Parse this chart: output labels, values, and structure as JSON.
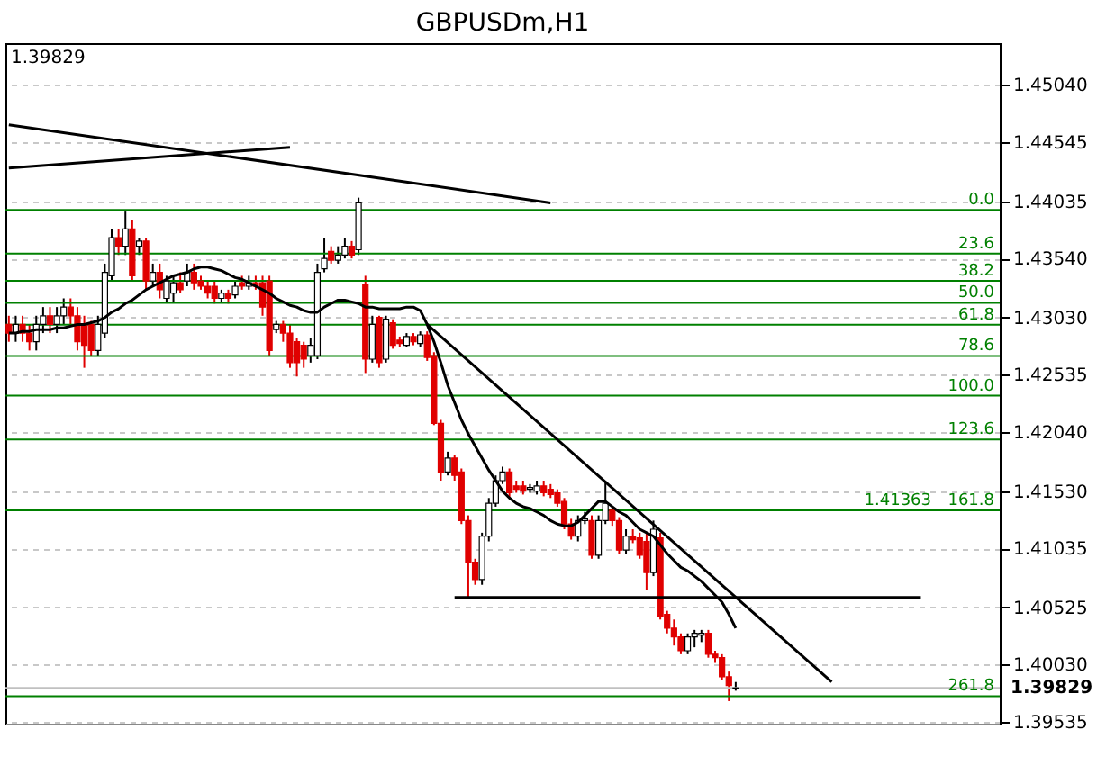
{
  "chart_data": {
    "type": "candlestick",
    "title": "GBPUSDm,H1",
    "categories": [
      null,
      null,
      null,
      null,
      null,
      null,
      null,
      null,
      null,
      null,
      null,
      null,
      null,
      null,
      null,
      null,
      null,
      null,
      null,
      null,
      null,
      null,
      null,
      null,
      null,
      null,
      null,
      null,
      null,
      null,
      null,
      null,
      null,
      null,
      null,
      null,
      null,
      null,
      null,
      null,
      null,
      null,
      null,
      null,
      null,
      null,
      null,
      null,
      null,
      null,
      null,
      null,
      null,
      null,
      null,
      null,
      null,
      null,
      null,
      null,
      null,
      null,
      null,
      null,
      null,
      null,
      null,
      null,
      null,
      null,
      null,
      null,
      null,
      null,
      null,
      null,
      null,
      null,
      null,
      null,
      null,
      null,
      null,
      null,
      null,
      null,
      null,
      null,
      null,
      null,
      null,
      null,
      null,
      null,
      null,
      null,
      null,
      null,
      null,
      null,
      null,
      null,
      null,
      null,
      null,
      null,
      null,
      null,
      null,
      null,
      null,
      null,
      null,
      null,
      null,
      null,
      null,
      null,
      null,
      null,
      null,
      null,
      null,
      null,
      null,
      null,
      null,
      null,
      null,
      null,
      null,
      null,
      null,
      null,
      null,
      null,
      null,
      null,
      null,
      null,
      null,
      null,
      null,
      null,
      null
    ],
    "ohlc": [
      [
        1.4297,
        1.43045,
        1.4282,
        1.42895
      ],
      [
        1.42895,
        1.43045,
        1.4282,
        1.4297
      ],
      [
        1.4297,
        1.43045,
        1.4282,
        1.42895
      ],
      [
        1.42895,
        1.4297,
        1.42745,
        1.4282
      ],
      [
        1.4282,
        1.43045,
        1.42745,
        1.4297
      ],
      [
        1.4297,
        1.4312,
        1.42895,
        1.43045
      ],
      [
        1.43045,
        1.4312,
        1.42895,
        1.4297
      ],
      [
        1.4297,
        1.4312,
        1.42895,
        1.43045
      ],
      [
        1.43045,
        1.43195,
        1.4297,
        1.4312
      ],
      [
        1.4312,
        1.43195,
        1.4297,
        1.43045
      ],
      [
        1.43045,
        1.4312,
        1.42745,
        1.4282
      ],
      [
        1.4297,
        1.43045,
        1.42595,
        1.4279
      ],
      [
        1.4297,
        1.43,
        1.427,
        1.42745
      ],
      [
        1.42745,
        1.43045,
        1.427,
        1.4297
      ],
      [
        1.42895,
        1.43495,
        1.4285,
        1.4342
      ],
      [
        1.4339,
        1.43795,
        1.43345,
        1.4372
      ],
      [
        1.4372,
        1.43795,
        1.4357,
        1.43645
      ],
      [
        1.43645,
        1.43945,
        1.4357,
        1.43795
      ],
      [
        1.43795,
        1.4387,
        1.43345,
        1.4339
      ],
      [
        1.43645,
        1.4372,
        1.4357,
        1.4369
      ],
      [
        1.4369,
        1.4372,
        1.4327,
        1.43345
      ],
      [
        1.43345,
        1.43495,
        1.433,
        1.4342
      ],
      [
        1.4342,
        1.43495,
        1.43195,
        1.4327
      ],
      [
        1.43195,
        1.4339,
        1.43165,
        1.43345
      ],
      [
        1.4324,
        1.4339,
        1.43165,
        1.4333
      ],
      [
        1.4333,
        1.4342,
        1.4324,
        1.4327
      ],
      [
        1.43345,
        1.43495,
        1.433,
        1.4342
      ],
      [
        1.4342,
        1.43495,
        1.4327,
        1.4333
      ],
      [
        1.43345,
        1.4339,
        1.4327,
        1.433
      ],
      [
        1.433,
        1.43345,
        1.43195,
        1.4324
      ],
      [
        1.433,
        1.43345,
        1.4315,
        1.43195
      ],
      [
        1.43195,
        1.4327,
        1.43165,
        1.4324
      ],
      [
        1.4324,
        1.4327,
        1.4315,
        1.43195
      ],
      [
        1.43225,
        1.43345,
        1.43195,
        1.433
      ],
      [
        1.4333,
        1.4339,
        1.4327,
        1.433
      ],
      [
        1.433,
        1.4339,
        1.4327,
        1.4333
      ],
      [
        1.4333,
        1.4339,
        1.4327,
        1.433
      ],
      [
        1.4333,
        1.4339,
        1.43045,
        1.4312
      ],
      [
        1.43345,
        1.4339,
        1.427,
        1.42745
      ],
      [
        1.42925,
        1.43,
        1.42895,
        1.4297
      ],
      [
        1.4297,
        1.43,
        1.4282,
        1.42895
      ],
      [
        1.42895,
        1.4297,
        1.42595,
        1.4264
      ],
      [
        1.4282,
        1.4285,
        1.4252,
        1.4264
      ],
      [
        1.4279,
        1.4282,
        1.42595,
        1.4267
      ],
      [
        1.427,
        1.4285,
        1.4264,
        1.4279
      ],
      [
        1.427,
        1.43495,
        1.4267,
        1.4342
      ],
      [
        1.4345,
        1.4372,
        1.4342,
        1.4354
      ],
      [
        1.436,
        1.43645,
        1.43495,
        1.43525
      ],
      [
        1.43525,
        1.43645,
        1.43495,
        1.4357
      ],
      [
        1.4357,
        1.4372,
        1.4354,
        1.43645
      ],
      [
        1.43645,
        1.4369,
        1.4354,
        1.4357
      ],
      [
        1.43615,
        1.44065,
        1.4357,
        1.4402
      ],
      [
        1.43315,
        1.4339,
        1.4255,
        1.4267
      ],
      [
        1.4267,
        1.43045,
        1.4264,
        1.4297
      ],
      [
        1.4303,
        1.43045,
        1.42595,
        1.4264
      ],
      [
        1.4267,
        1.43045,
        1.4264,
        1.43015
      ],
      [
        1.42985,
        1.43015,
        1.4276,
        1.4279
      ],
      [
        1.42835,
        1.42865,
        1.42775,
        1.42805
      ],
      [
        1.4279,
        1.42895,
        1.42775,
        1.42865
      ],
      [
        1.42865,
        1.42895,
        1.4279,
        1.4282
      ],
      [
        1.42805,
        1.4291,
        1.42775,
        1.4288
      ],
      [
        1.4288,
        1.4291,
        1.42655,
        1.42685
      ],
      [
        1.427,
        1.4273,
        1.421,
        1.42115
      ],
      [
        1.42115,
        1.42145,
        1.4162,
        1.41695
      ],
      [
        1.41695,
        1.4187,
        1.41665,
        1.41815
      ],
      [
        1.41815,
        1.41845,
        1.4162,
        1.41665
      ],
      [
        1.41695,
        1.41725,
        1.41245,
        1.41275
      ],
      [
        1.41275,
        1.4132,
        1.40615,
        1.40915
      ],
      [
        1.40915,
        1.40945,
        1.4072,
        1.40765
      ],
      [
        1.40765,
        1.4117,
        1.4072,
        1.4114
      ],
      [
        1.4114,
        1.4147,
        1.41095,
        1.41425
      ],
      [
        1.41425,
        1.41665,
        1.41395,
        1.4162
      ],
      [
        1.4162,
        1.4174,
        1.4159,
        1.41695
      ],
      [
        1.41695,
        1.41725,
        1.4147,
        1.41515
      ],
      [
        1.41575,
        1.4162,
        1.41515,
        1.41545
      ],
      [
        1.41575,
        1.4162,
        1.415,
        1.4153
      ],
      [
        1.41545,
        1.4159,
        1.41515,
        1.4156
      ],
      [
        1.4153,
        1.4162,
        1.415,
        1.41575
      ],
      [
        1.41575,
        1.4162,
        1.41485,
        1.41515
      ],
      [
        1.41545,
        1.4159,
        1.4147,
        1.415
      ],
      [
        1.41515,
        1.41545,
        1.41395,
        1.41425
      ],
      [
        1.4144,
        1.4147,
        1.412,
        1.41245
      ],
      [
        1.41245,
        1.4129,
        1.4111,
        1.4114
      ],
      [
        1.4114,
        1.4132,
        1.41095,
        1.41275
      ],
      [
        1.41275,
        1.4135,
        1.41245,
        1.4129
      ],
      [
        1.41275,
        1.4132,
        1.40945,
        1.40975
      ],
      [
        1.40975,
        1.4132,
        1.40945,
        1.41275
      ],
      [
        1.41275,
        1.4162,
        1.41245,
        1.41425
      ],
      [
        1.41365,
        1.41395,
        1.4123,
        1.41275
      ],
      [
        1.41275,
        1.41305,
        1.4099,
        1.4102
      ],
      [
        1.4102,
        1.412,
        1.4099,
        1.4114
      ],
      [
        1.4114,
        1.412,
        1.4108,
        1.4111
      ],
      [
        1.41125,
        1.4117,
        1.40945,
        1.40975
      ],
      [
        1.41095,
        1.4117,
        1.40675,
        1.40825
      ],
      [
        1.40825,
        1.41275,
        1.40795,
        1.412
      ],
      [
        1.41125,
        1.4117,
        1.4042,
        1.4045
      ],
      [
        1.40465,
        1.40495,
        1.403,
        1.40345
      ],
      [
        1.40345,
        1.4042,
        1.40195,
        1.4027
      ],
      [
        1.4027,
        1.403,
        1.4012,
        1.4015
      ],
      [
        1.4015,
        1.403,
        1.4012,
        1.4027
      ],
      [
        1.4027,
        1.4033,
        1.4018,
        1.403
      ],
      [
        1.40285,
        1.4033,
        1.40225,
        1.403
      ],
      [
        1.403,
        1.4033,
        1.4009,
        1.4012
      ],
      [
        1.4012,
        1.4015,
        1.40045,
        1.4009
      ],
      [
        1.4009,
        1.4012,
        1.39895,
        1.39925
      ],
      [
        1.39925,
        1.3997,
        1.39715,
        1.3985
      ],
      [
        1.3982,
        1.3988,
        1.39805,
        1.39829
      ],
      null,
      null,
      null,
      null,
      null,
      null,
      null,
      null,
      null,
      null,
      null,
      null,
      null,
      null,
      null,
      null,
      null,
      null,
      null,
      null,
      null,
      null,
      null,
      null,
      null,
      null,
      null,
      null,
      null,
      null,
      null,
      null,
      null,
      null,
      null,
      null,
      null,
      null
    ],
    "series": [
      {
        "type": "line",
        "color": "#000000",
        "values": [
          1.42895,
          1.42895,
          1.4291,
          1.4291,
          1.42925,
          1.42925,
          1.42925,
          1.4294,
          1.4294,
          1.42955,
          1.4297,
          1.4297,
          1.42985,
          1.43,
          1.4303,
          1.43075,
          1.43105,
          1.4315,
          1.4318,
          1.43225,
          1.4327,
          1.433,
          1.4333,
          1.4336,
          1.4339,
          1.43405,
          1.4342,
          1.4345,
          1.43465,
          1.43465,
          1.4345,
          1.43435,
          1.43405,
          1.43375,
          1.4336,
          1.4333,
          1.433,
          1.4327,
          1.4324,
          1.43195,
          1.43165,
          1.43135,
          1.4312,
          1.4309,
          1.43075,
          1.43075,
          1.4312,
          1.4315,
          1.4318,
          1.4318,
          1.43165,
          1.4315,
          1.4312,
          1.4312,
          1.43105,
          1.43105,
          1.43105,
          1.43105,
          1.4312,
          1.4312,
          1.4309,
          1.4297,
          1.4282,
          1.4264,
          1.42445,
          1.42295,
          1.42145,
          1.42025,
          1.4192,
          1.41815,
          1.4171,
          1.4162,
          1.4153,
          1.4147,
          1.41425,
          1.41395,
          1.4138,
          1.4135,
          1.4132,
          1.41275,
          1.41245,
          1.4123,
          1.4123,
          1.4126,
          1.4132,
          1.4138,
          1.4144,
          1.4144,
          1.41395,
          1.4135,
          1.4132,
          1.4126,
          1.412,
          1.4117,
          1.4114,
          1.41065,
          1.4099,
          1.4093,
          1.4087,
          1.4084,
          1.40795,
          1.4075,
          1.4069,
          1.4063,
          1.4057,
          1.40465,
          1.40345,
          null,
          null,
          null,
          null,
          null,
          null,
          null,
          null,
          null,
          null,
          null,
          null,
          null,
          null,
          null,
          null,
          null,
          null,
          null,
          null,
          null,
          null,
          null,
          null,
          null,
          null,
          null,
          null,
          null,
          null,
          null,
          null,
          null,
          null,
          null,
          null,
          null,
          null
        ]
      },
      {
        "type": "line",
        "color": "#000000",
        "values": [
          null,
          null,
          null,
          null,
          null,
          null,
          null,
          null,
          null,
          null,
          null,
          null,
          null,
          null,
          null,
          null,
          null,
          null,
          null,
          null,
          null,
          null,
          null,
          null,
          null,
          null,
          null,
          null,
          null,
          null,
          null,
          null,
          null,
          null,
          null,
          null,
          null,
          null,
          null,
          null,
          null,
          null,
          null,
          null,
          null,
          null,
          null,
          null,
          null,
          null,
          null,
          null,
          null,
          null,
          null,
          null,
          null,
          null,
          null,
          null,
          null,
          null,
          null,
          null,
          null,
          1.4061,
          null,
          null,
          null,
          null,
          null,
          null,
          null,
          null,
          null,
          null,
          null,
          null,
          null,
          null,
          null,
          null,
          null,
          null,
          null,
          null,
          null,
          null,
          null,
          null,
          null,
          null,
          null,
          null,
          null,
          null,
          null,
          null,
          null,
          null,
          null,
          null,
          null,
          null,
          null,
          null,
          null,
          null,
          null,
          null,
          null,
          null,
          null,
          null,
          null,
          null,
          null,
          null,
          null,
          null,
          null,
          null,
          null,
          null,
          null,
          null,
          null,
          null,
          null,
          null,
          null,
          null,
          null,
          1.4061,
          null,
          null,
          null,
          null,
          null,
          null,
          null,
          null,
          null,
          null,
          null
        ]
      },
      {
        "type": "line",
        "color": "#000000",
        "values": [
          null,
          null,
          null,
          null,
          null,
          null,
          null,
          null,
          null,
          null,
          null,
          null,
          null,
          null,
          null,
          null,
          null,
          null,
          null,
          null,
          null,
          null,
          null,
          null,
          null,
          null,
          null,
          null,
          null,
          null,
          null,
          null,
          null,
          null,
          null,
          null,
          null,
          null,
          null,
          null,
          null,
          null,
          null,
          null,
          null,
          null,
          null,
          null,
          null,
          null,
          null,
          null,
          null,
          null,
          null,
          null,
          null,
          null,
          null,
          null,
          null,
          1.4297,
          null,
          null,
          null,
          null,
          null,
          null,
          null,
          null,
          null,
          null,
          null,
          null,
          null,
          null,
          null,
          null,
          null,
          null,
          null,
          null,
          null,
          null,
          null,
          null,
          null,
          null,
          null,
          null,
          null,
          null,
          null,
          null,
          null,
          null,
          null,
          null,
          null,
          null,
          null,
          null,
          null,
          null,
          null,
          null,
          null,
          null,
          null,
          null,
          null,
          null,
          null,
          null,
          null,
          null,
          null,
          null,
          null,
          null,
          1.3988,
          null,
          null,
          null,
          null,
          null,
          null,
          null,
          null,
          null,
          null,
          null,
          null,
          null,
          null,
          null,
          null,
          null,
          null,
          null,
          null,
          null,
          null,
          null,
          null
        ]
      },
      {
        "type": "line",
        "color": "#000000",
        "values": [
          1.44695,
          null,
          null,
          null,
          null,
          null,
          null,
          null,
          null,
          null,
          null,
          null,
          null,
          null,
          null,
          null,
          null,
          null,
          null,
          null,
          null,
          null,
          null,
          null,
          null,
          null,
          null,
          null,
          null,
          null,
          null,
          null,
          null,
          null,
          null,
          null,
          null,
          null,
          null,
          null,
          null,
          null,
          null,
          null,
          null,
          null,
          null,
          null,
          null,
          null,
          null,
          null,
          null,
          null,
          null,
          null,
          null,
          null,
          null,
          null,
          null,
          null,
          null,
          null,
          null,
          null,
          null,
          null,
          null,
          null,
          null,
          null,
          null,
          null,
          null,
          null,
          null,
          null,
          null,
          1.4402,
          null,
          null,
          null,
          null,
          null,
          null,
          null,
          null,
          null,
          null,
          null,
          null,
          null,
          null,
          null,
          null,
          null,
          null,
          null,
          null,
          null,
          null,
          null,
          null,
          null,
          null,
          null,
          null,
          null,
          null,
          null,
          null,
          null,
          null,
          null,
          null,
          null,
          null,
          null,
          null,
          null,
          null,
          null,
          null,
          null,
          null,
          null,
          null,
          null,
          null,
          null,
          null,
          null,
          null,
          null,
          null,
          null,
          null,
          null,
          null,
          null,
          null,
          null,
          null,
          null
        ]
      },
      {
        "type": "line",
        "color": "#000000",
        "values": [
          1.4432,
          null,
          null,
          null,
          null,
          null,
          null,
          null,
          null,
          null,
          null,
          null,
          null,
          null,
          null,
          null,
          null,
          null,
          null,
          null,
          null,
          null,
          null,
          null,
          null,
          null,
          null,
          null,
          null,
          null,
          null,
          null,
          null,
          null,
          null,
          null,
          null,
          null,
          null,
          null,
          null,
          1.445,
          null,
          null,
          null,
          null,
          null,
          null,
          null,
          null,
          null,
          null,
          null,
          null,
          null,
          null,
          null,
          null,
          null,
          null,
          null,
          null,
          null,
          null,
          null,
          null,
          null,
          null,
          null,
          null,
          null,
          null,
          null,
          null,
          null,
          null,
          null,
          null,
          null,
          null,
          null,
          null,
          null,
          null,
          null,
          null,
          null,
          null,
          null,
          null,
          null,
          null,
          null,
          null,
          null,
          null,
          null,
          null,
          null,
          null,
          null,
          null,
          null,
          null,
          null,
          null,
          null,
          null,
          null,
          null,
          null,
          null,
          null,
          null,
          null,
          null,
          null,
          null,
          null,
          null,
          null,
          null,
          null,
          null,
          null,
          null,
          null,
          null,
          null,
          null,
          null,
          null,
          null,
          null,
          null,
          null,
          null,
          null,
          null,
          null,
          null,
          null,
          null,
          null,
          null
        ]
      }
    ],
    "ylim": [
      1.3952,
      1.454
    ],
    "yticks": [
      {
        "value": 1.4504,
        "label": "1.45040"
      },
      1.44545,
      1.44035,
      {
        "value": 1.4354,
        "label": "1.43540"
      },
      {
        "value": 1.4303,
        "label": "1.43030"
      },
      1.42535,
      {
        "value": 1.4204,
        "label": "1.42040"
      },
      {
        "value": 1.4153,
        "label": "1.41530"
      },
      1.41035,
      1.40525,
      {
        "value": 1.4003,
        "label": "1.40030"
      },
      1.39535
    ],
    "ref_lines": [
      {
        "axis": "y",
        "value": 1.4396,
        "color": "#008000"
      },
      {
        "axis": "y",
        "value": 1.43581,
        "color": "#008000"
      },
      {
        "axis": "y",
        "value": 1.43347,
        "color": "#008000"
      },
      {
        "axis": "y",
        "value": 1.43157,
        "color": "#008000"
      },
      {
        "axis": "y",
        "value": 1.42968,
        "color": "#008000"
      },
      {
        "axis": "y",
        "value": 1.42698,
        "color": "#008000"
      },
      {
        "axis": "y",
        "value": 1.42355,
        "color": "#008000"
      },
      {
        "axis": "y",
        "value": 1.41976,
        "color": "#008000"
      },
      {
        "axis": "y",
        "value": 1.41363,
        "label": "1.41363",
        "color": "#008000"
      },
      {
        "axis": "y",
        "value": 1.39758,
        "color": "#008000"
      },
      {
        "axis": "y",
        "value": 1.39829,
        "label": "1.39829",
        "color": "#c0c0c0"
      }
    ],
    "annotations": [
      "1.39829",
      {
        "text": "0.0",
        "y": 1.4396
      },
      {
        "text": "23.6",
        "y": 1.43581
      },
      {
        "text": "38.2",
        "y": 1.43347
      },
      {
        "text": "50.0",
        "y": 1.43157
      },
      {
        "text": "61.8",
        "y": 1.42968
      },
      {
        "text": "78.6",
        "y": 1.42698
      },
      {
        "text": "100.0",
        "y": 1.42355
      },
      {
        "text": "123.6",
        "y": 1.41976
      },
      {
        "text": "161.8",
        "y": 1.41363
      },
      {
        "text": "261.8",
        "y": 1.39758
      }
    ],
    "grid": "y",
    "tick_labels": "y"
  }
}
